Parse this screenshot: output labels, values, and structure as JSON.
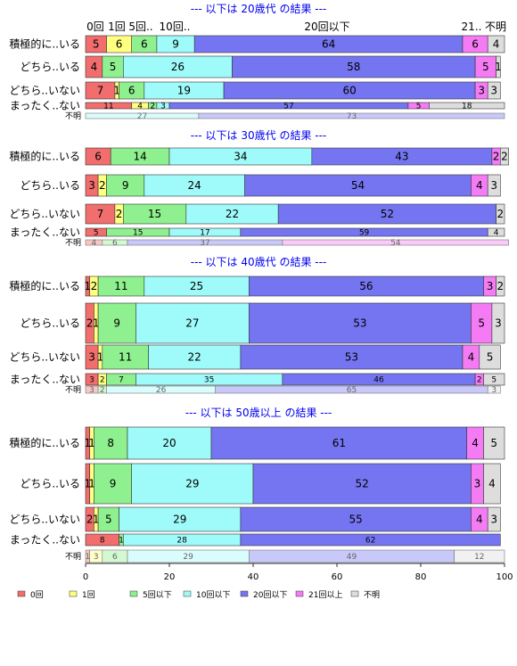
{
  "chart_data": {
    "type": "bar",
    "orientation": "horizontal",
    "stacked": true,
    "percent": true,
    "xlim": [
      0,
      100
    ],
    "xticks": [
      0,
      20,
      40,
      60,
      80,
      100
    ],
    "category_headers": [
      "0回",
      "1回",
      "5回..",
      "10回..",
      "20回以下",
      "21..",
      "不明"
    ],
    "legend": {
      "position": "bottom",
      "labels": [
        "0回",
        "1回",
        "5回以下",
        "10回以下",
        "20回以下",
        "21回以上",
        "不明"
      ]
    },
    "colors": [
      "#f26d6d",
      "#ffff80",
      "#8ef08e",
      "#9ffafa",
      "#7575f2",
      "#f57bf5",
      "#dddddd"
    ],
    "panels": [
      {
        "title": "--- 以下は 20歳代 の結果 ---",
        "rows": [
          {
            "label": "積極的に..いる",
            "values": [
              5,
              6,
              6,
              9,
              64,
              6,
              4
            ]
          },
          {
            "label": "どちら..いる",
            "values": [
              4,
              0,
              5,
              26,
              58,
              5,
              1
            ]
          },
          {
            "label": "どちら..いない",
            "values": [
              7,
              1,
              6,
              19,
              60,
              3,
              3
            ]
          },
          {
            "label": "まったく..ない",
            "values": [
              11,
              4,
              2,
              3,
              57,
              5,
              18
            ]
          },
          {
            "label": "不明",
            "values": [
              0,
              0,
              0,
              27,
              73,
              0,
              0
            ]
          }
        ]
      },
      {
        "title": "--- 以下は 30歳代 の結果 ---",
        "rows": [
          {
            "label": "積極的に..いる",
            "values": [
              6,
              0,
              14,
              34,
              43,
              2,
              2
            ]
          },
          {
            "label": "どちら..いる",
            "values": [
              3,
              2,
              9,
              24,
              54,
              4,
              3
            ]
          },
          {
            "label": "どちら..いない",
            "values": [
              7,
              2,
              15,
              22,
              52,
              0,
              2
            ]
          },
          {
            "label": "まったく..ない",
            "values": [
              5,
              0,
              15,
              17,
              59,
              0,
              4
            ]
          },
          {
            "label": "不明",
            "values": [
              4,
              0,
              6,
              0,
              37,
              54,
              0
            ]
          }
        ]
      },
      {
        "title": "--- 以下は 40歳代 の結果 ---",
        "rows": [
          {
            "label": "積極的に..いる",
            "values": [
              1,
              2,
              11,
              25,
              56,
              3,
              2
            ]
          },
          {
            "label": "どちら..いる",
            "values": [
              2,
              1,
              9,
              27,
              53,
              5,
              3
            ]
          },
          {
            "label": "どちら..いない",
            "values": [
              3,
              1,
              11,
              22,
              53,
              4,
              5
            ]
          },
          {
            "label": "まったく..ない",
            "values": [
              3,
              2,
              7,
              35,
              46,
              2,
              5
            ]
          },
          {
            "label": "不明",
            "values": [
              3,
              0,
              2,
              26,
              65,
              0,
              3
            ]
          }
        ]
      },
      {
        "title": "--- 以下は 50歳以上 の結果 ---",
        "rows": [
          {
            "label": "積極的に..いる",
            "values": [
              1,
              1,
              8,
              20,
              61,
              4,
              5
            ]
          },
          {
            "label": "どちら..いる",
            "values": [
              1,
              1,
              9,
              29,
              52,
              3,
              4
            ]
          },
          {
            "label": "どちら..いない",
            "values": [
              2,
              1,
              5,
              29,
              55,
              4,
              3
            ]
          },
          {
            "label": "まったく..ない",
            "values": [
              8,
              0,
              1,
              28,
              62,
              0,
              0
            ]
          },
          {
            "label": "不明",
            "values": [
              1,
              3,
              6,
              29,
              49,
              0,
              12
            ]
          }
        ]
      }
    ]
  }
}
